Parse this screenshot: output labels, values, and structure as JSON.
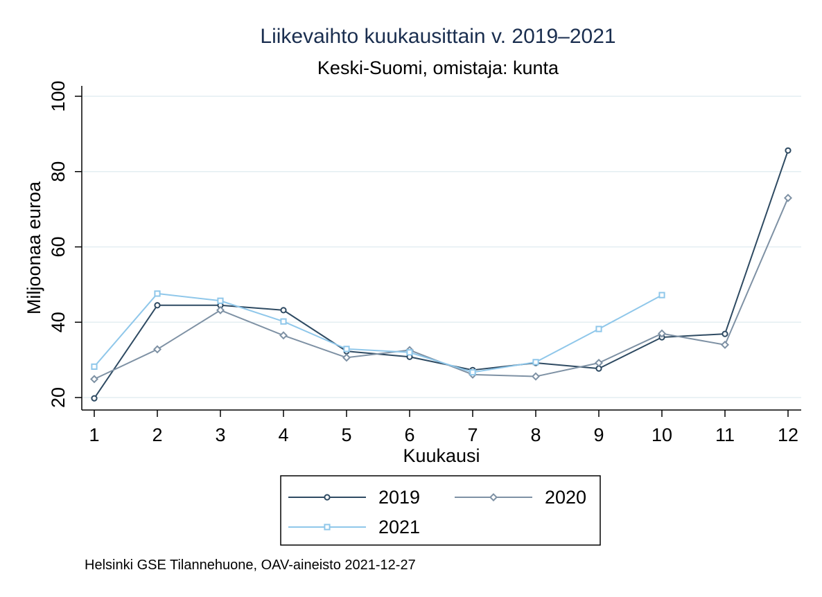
{
  "chart_data": {
    "type": "line",
    "title": "Liikevaihto kuukausittain v. 2019–2021",
    "subtitle": "Keski-Suomi, omistaja: kunta",
    "xlabel": "Kuukausi",
    "ylabel": "Miljoonaa euroa",
    "xlim": [
      1,
      12
    ],
    "ylim": [
      20,
      100
    ],
    "xticks": [
      1,
      2,
      3,
      4,
      5,
      6,
      7,
      8,
      9,
      10,
      11,
      12
    ],
    "yticks": [
      20,
      40,
      60,
      80,
      100
    ],
    "grid": true,
    "legend_position": "bottom",
    "note": "Helsinki GSE Tilannehuone, OAV-aineisto 2021-12-27",
    "series": [
      {
        "name": "2019",
        "color": "#2e4a62",
        "marker": "circle",
        "x": [
          1,
          2,
          3,
          4,
          5,
          6,
          7,
          8,
          9,
          10,
          11,
          12
        ],
        "values": [
          19.8,
          44.5,
          44.5,
          43.2,
          32.3,
          30.8,
          27.3,
          29.2,
          27.7,
          36.0,
          36.9,
          85.6
        ]
      },
      {
        "name": "2020",
        "color": "#7e91a4",
        "marker": "diamond",
        "x": [
          1,
          2,
          3,
          4,
          5,
          6,
          7,
          8,
          9,
          10,
          11,
          12
        ],
        "values": [
          24.9,
          32.8,
          43.2,
          36.5,
          30.6,
          32.6,
          26.1,
          25.6,
          29.2,
          37.0,
          34.0,
          73.0
        ]
      },
      {
        "name": "2021",
        "color": "#8fc7ea",
        "marker": "square",
        "x": [
          1,
          2,
          3,
          4,
          5,
          6,
          7,
          8,
          9,
          10
        ],
        "values": [
          28.2,
          47.6,
          45.7,
          40.2,
          32.9,
          32.0,
          26.7,
          29.4,
          38.2,
          47.2
        ]
      }
    ]
  }
}
